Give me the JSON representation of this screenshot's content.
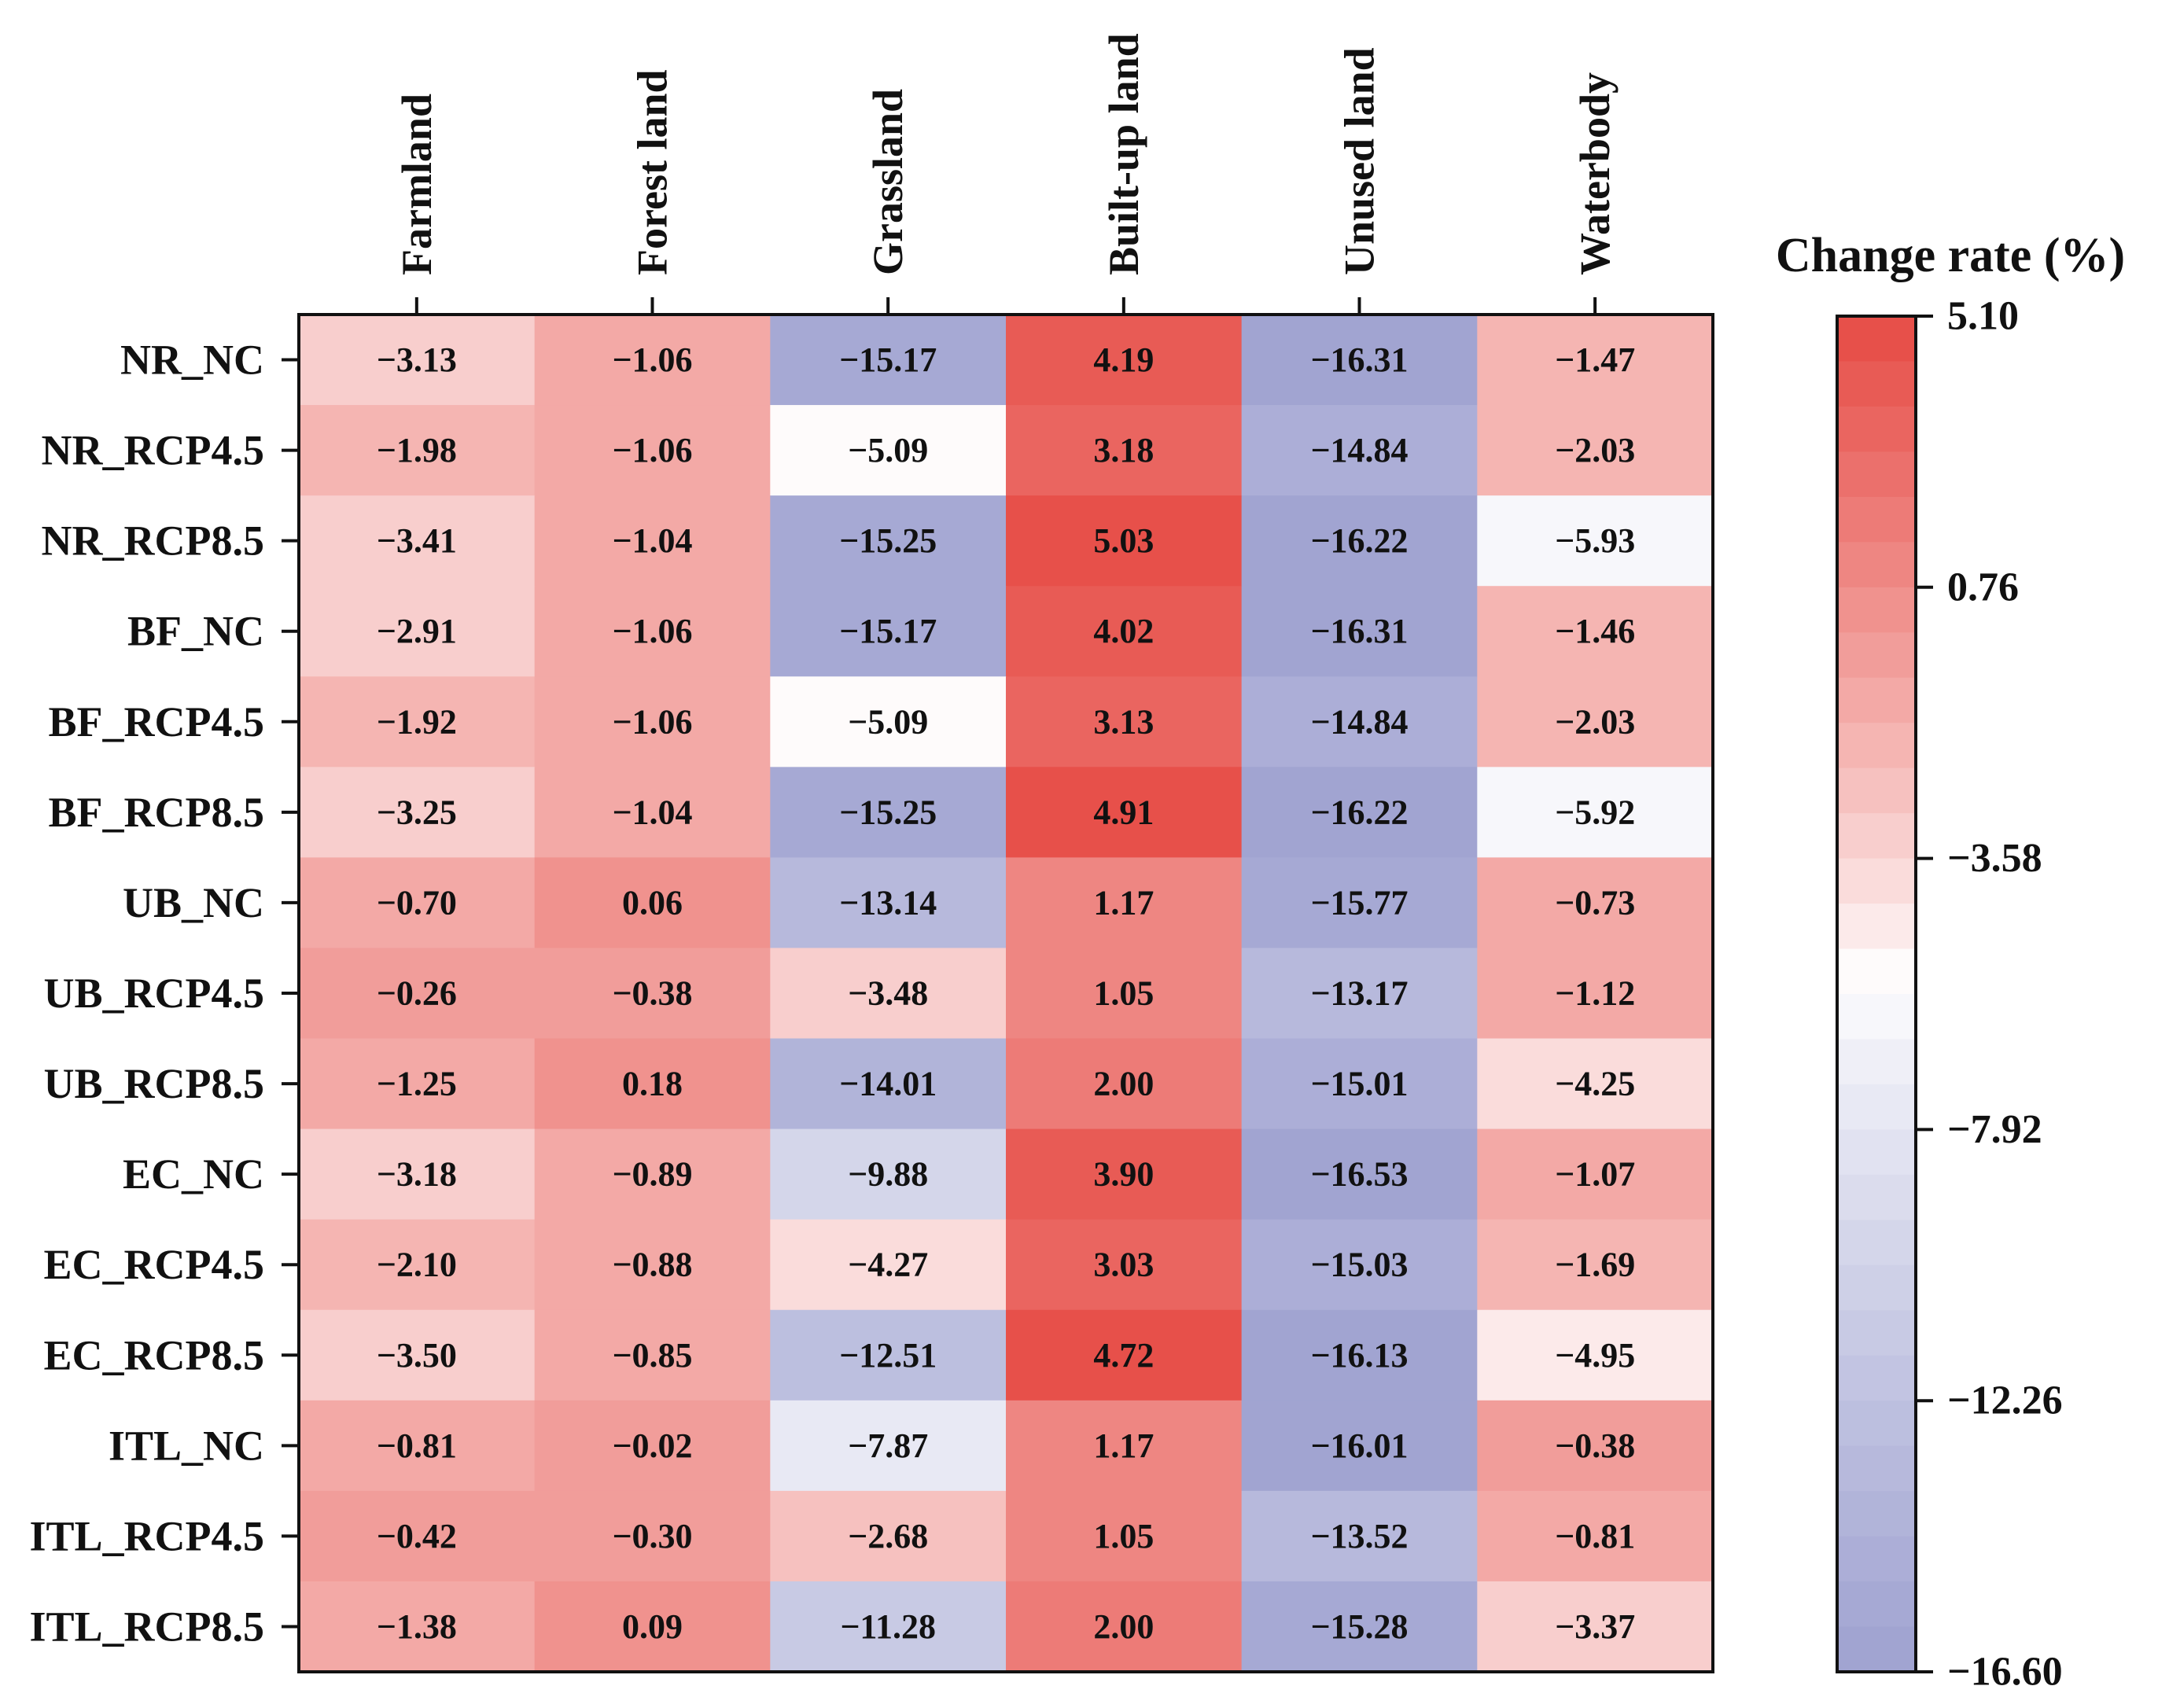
{
  "chart_data": {
    "type": "heatmap",
    "title": "",
    "columns": [
      "Farmland",
      "Forest land",
      "Grassland",
      "Built-up land",
      "Unused land",
      "Waterbody"
    ],
    "rows": [
      "NR_NC",
      "NR_RCP4.5",
      "NR_RCP8.5",
      "BF_NC",
      "BF_RCP4.5",
      "BF_RCP8.5",
      "UB_NC",
      "UB_RCP4.5",
      "UB_RCP8.5",
      "EC_NC",
      "EC_RCP4.5",
      "EC_RCP8.5",
      "ITL_NC",
      "ITL_RCP4.5",
      "ITL_RCP8.5"
    ],
    "values": [
      [
        -3.13,
        -1.06,
        -15.17,
        4.19,
        -16.31,
        -1.47
      ],
      [
        -1.98,
        -1.06,
        -5.09,
        3.18,
        -14.84,
        -2.03
      ],
      [
        -3.41,
        -1.04,
        -15.25,
        5.03,
        -16.22,
        -5.93
      ],
      [
        -2.91,
        -1.06,
        -15.17,
        4.02,
        -16.31,
        -1.46
      ],
      [
        -1.92,
        -1.06,
        -5.09,
        3.13,
        -14.84,
        -2.03
      ],
      [
        -3.25,
        -1.04,
        -15.25,
        4.91,
        -16.22,
        -5.92
      ],
      [
        -0.7,
        0.06,
        -13.14,
        1.17,
        -15.77,
        -0.73
      ],
      [
        -0.26,
        -0.38,
        -3.48,
        1.05,
        -13.17,
        -1.12
      ],
      [
        -1.25,
        0.18,
        -14.01,
        2.0,
        -15.01,
        -4.25
      ],
      [
        -3.18,
        -0.89,
        -9.88,
        3.9,
        -16.53,
        -1.07
      ],
      [
        -2.1,
        -0.88,
        -4.27,
        3.03,
        -15.03,
        -1.69
      ],
      [
        -3.5,
        -0.85,
        -12.51,
        4.72,
        -16.13,
        -4.95
      ],
      [
        -0.81,
        -0.02,
        -7.87,
        1.17,
        -16.01,
        -0.38
      ],
      [
        -0.42,
        -0.3,
        -2.68,
        1.05,
        -13.52,
        -0.81
      ],
      [
        -1.38,
        0.09,
        -11.28,
        2.0,
        -15.28,
        -3.37
      ]
    ],
    "value_labels": [
      [
        "−3.13",
        "−1.06",
        "−15.17",
        "4.19",
        "−16.31",
        "−1.47"
      ],
      [
        "−1.98",
        "−1.06",
        "−5.09",
        "3.18",
        "−14.84",
        "−2.03"
      ],
      [
        "−3.41",
        "−1.04",
        "−15.25",
        "5.03",
        "−16.22",
        "−5.93"
      ],
      [
        "−2.91",
        "−1.06",
        "−15.17",
        "4.02",
        "−16.31",
        "−1.46"
      ],
      [
        "−1.92",
        "−1.06",
        "−5.09",
        "3.13",
        "−14.84",
        "−2.03"
      ],
      [
        "−3.25",
        "−1.04",
        "−15.25",
        "4.91",
        "−16.22",
        "−5.92"
      ],
      [
        "−0.70",
        "0.06",
        "−13.14",
        "1.17",
        "−15.77",
        "−0.73"
      ],
      [
        "−0.26",
        "−0.38",
        "−3.48",
        "1.05",
        "−13.17",
        "−1.12"
      ],
      [
        "−1.25",
        "0.18",
        "−14.01",
        "2.00",
        "−15.01",
        "−4.25"
      ],
      [
        "−3.18",
        "−0.89",
        "−9.88",
        "3.90",
        "−16.53",
        "−1.07"
      ],
      [
        "−2.10",
        "−0.88",
        "−4.27",
        "3.03",
        "−15.03",
        "−1.69"
      ],
      [
        "−3.50",
        "−0.85",
        "−12.51",
        "4.72",
        "−16.13",
        "−4.95"
      ],
      [
        "−0.81",
        "−0.02",
        "−7.87",
        "1.17",
        "−16.01",
        "−0.38"
      ],
      [
        "−0.42",
        "−0.30",
        "−2.68",
        "1.05",
        "−13.52",
        "−0.81"
      ],
      [
        "−1.38",
        "0.09",
        "−11.28",
        "2.00",
        "−15.28",
        "−3.37"
      ]
    ],
    "colorbar": {
      "title": "Change rate (%)",
      "min": -16.6,
      "max": 5.1,
      "ticks": [
        5.1,
        0.76,
        -3.58,
        -7.92,
        -12.26,
        -16.6
      ],
      "tick_labels": [
        "5.10",
        "0.76",
        "−3.58",
        "−7.92",
        "−12.26",
        "−16.60"
      ],
      "levels": 30,
      "colors": {
        "high": "#e64b45",
        "mid": "#ffffff",
        "low": "#9ea1d0"
      },
      "midpoint": -5.5
    },
    "colorbar_placement": "right",
    "column_label_placement": "top-rotated",
    "grid": false
  }
}
